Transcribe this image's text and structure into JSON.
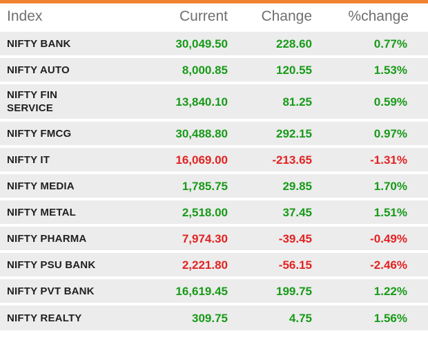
{
  "widget": {
    "top_bar_color": "#ef8330",
    "positive_color": "#189a18",
    "negative_color": "#e22222",
    "row_background": "#ececec",
    "header_text_color": "#6f6f6f"
  },
  "table": {
    "columns": [
      {
        "key": "index",
        "label": "Index"
      },
      {
        "key": "current",
        "label": "Current"
      },
      {
        "key": "change",
        "label": "Change"
      },
      {
        "key": "pct_change",
        "label": "%change"
      }
    ],
    "rows": [
      {
        "index": "NIFTY BANK",
        "current": "30,049.50",
        "change": "228.60",
        "pct_change": "0.77%",
        "direction": "up"
      },
      {
        "index": "NIFTY AUTO",
        "current": "8,000.85",
        "change": "120.55",
        "pct_change": "1.53%",
        "direction": "up"
      },
      {
        "index": "NIFTY FIN SERVICE",
        "current": "13,840.10",
        "change": "81.25",
        "pct_change": "0.59%",
        "direction": "up"
      },
      {
        "index": "NIFTY FMCG",
        "current": "30,488.80",
        "change": "292.15",
        "pct_change": "0.97%",
        "direction": "up"
      },
      {
        "index": "NIFTY IT",
        "current": "16,069.00",
        "change": "-213.65",
        "pct_change": "-1.31%",
        "direction": "down"
      },
      {
        "index": "NIFTY MEDIA",
        "current": "1,785.75",
        "change": "29.85",
        "pct_change": "1.70%",
        "direction": "up"
      },
      {
        "index": "NIFTY METAL",
        "current": "2,518.00",
        "change": "37.45",
        "pct_change": "1.51%",
        "direction": "up"
      },
      {
        "index": "NIFTY PHARMA",
        "current": "7,974.30",
        "change": "-39.45",
        "pct_change": "-0.49%",
        "direction": "down"
      },
      {
        "index": "NIFTY PSU BANK",
        "current": "2,221.80",
        "change": "-56.15",
        "pct_change": "-2.46%",
        "direction": "down"
      },
      {
        "index": "NIFTY PVT BANK",
        "current": "16,619.45",
        "change": "199.75",
        "pct_change": "1.22%",
        "direction": "up"
      },
      {
        "index": "NIFTY REALTY",
        "current": "309.75",
        "change": "4.75",
        "pct_change": "1.56%",
        "direction": "up"
      }
    ]
  },
  "chart_data": {
    "type": "table",
    "columns": [
      "Index",
      "Current",
      "Change",
      "%change"
    ],
    "rows": [
      [
        "NIFTY BANK",
        30049.5,
        228.6,
        0.77
      ],
      [
        "NIFTY AUTO",
        8000.85,
        120.55,
        1.53
      ],
      [
        "NIFTY FIN SERVICE",
        13840.1,
        81.25,
        0.59
      ],
      [
        "NIFTY FMCG",
        30488.8,
        292.15,
        0.97
      ],
      [
        "NIFTY IT",
        16069.0,
        -213.65,
        -1.31
      ],
      [
        "NIFTY MEDIA",
        1785.75,
        29.85,
        1.7
      ],
      [
        "NIFTY METAL",
        2518.0,
        37.45,
        1.51
      ],
      [
        "NIFTY PHARMA",
        7974.3,
        -39.45,
        -0.49
      ],
      [
        "NIFTY PSU BANK",
        2221.8,
        -56.15,
        -2.46
      ],
      [
        "NIFTY PVT BANK",
        16619.45,
        199.75,
        1.22
      ],
      [
        "NIFTY REALTY",
        309.75,
        4.75,
        1.56
      ]
    ],
    "pct_change_unit": "%",
    "value_color_rule": "green when change >= 0, red when change < 0"
  }
}
